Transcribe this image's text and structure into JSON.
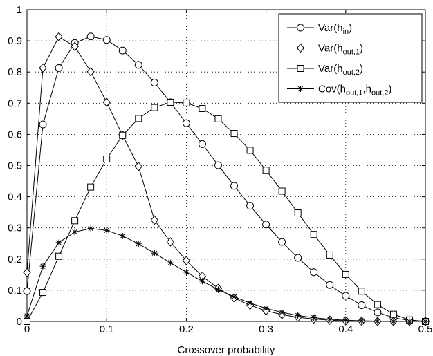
{
  "chart_data": {
    "type": "line",
    "title": "",
    "xlabel": "Crossover probability",
    "ylabel": "",
    "xlim": [
      0,
      0.5
    ],
    "ylim": [
      0,
      1
    ],
    "x_ticks": [
      0,
      0.1,
      0.2,
      0.3,
      0.4,
      0.5
    ],
    "x_tick_labels": [
      "0",
      "0.1",
      "0.2",
      "0.3",
      "0.4",
      "0.5"
    ],
    "y_ticks": [
      0,
      0.1,
      0.2,
      0.3,
      0.4,
      0.5,
      0.6,
      0.7,
      0.8,
      0.9,
      1
    ],
    "y_tick_labels": [
      "0",
      "0.1",
      "0.2",
      "0.3",
      "0.4",
      "0.5",
      "0.6",
      "0.7",
      "0.8",
      "0.9",
      "1"
    ],
    "grid": true,
    "legend_position": "top-right",
    "x": [
      0,
      0.02,
      0.04,
      0.06,
      0.08,
      0.1,
      0.12,
      0.14,
      0.16,
      0.18,
      0.2,
      0.22,
      0.24,
      0.26,
      0.28,
      0.3,
      0.32,
      0.34,
      0.36,
      0.38,
      0.4,
      0.42,
      0.44,
      0.46,
      0.48,
      0.5
    ],
    "series": [
      {
        "name_main": "Var(h",
        "name_sub": "in",
        "name_close": ")",
        "marker": "circle",
        "values": [
          0.097,
          0.632,
          0.813,
          0.893,
          0.914,
          0.903,
          0.869,
          0.823,
          0.766,
          0.703,
          0.636,
          0.569,
          0.501,
          0.435,
          0.371,
          0.311,
          0.255,
          0.204,
          0.158,
          0.117,
          0.082,
          0.052,
          0.029,
          0.012,
          0.003,
          0.0
        ]
      },
      {
        "name_main": "Var(h",
        "name_sub": "out,1",
        "name_close": ")",
        "marker": "diamond",
        "values": [
          0.157,
          0.813,
          0.913,
          0.882,
          0.801,
          0.703,
          0.597,
          0.497,
          0.325,
          0.255,
          0.195,
          0.145,
          0.106,
          0.075,
          0.052,
          0.034,
          0.022,
          0.013,
          0.008,
          0.004,
          0.002,
          0.001,
          0.0,
          0.0,
          0.0,
          0.0
        ]
      },
      {
        "name_main": "Var(h",
        "name_sub": "out,2",
        "name_close": ")",
        "marker": "square",
        "values": [
          0.0,
          0.093,
          0.209,
          0.323,
          0.431,
          0.521,
          0.597,
          0.651,
          0.686,
          0.703,
          0.701,
          0.683,
          0.65,
          0.603,
          0.549,
          0.485,
          0.418,
          0.348,
          0.279,
          0.213,
          0.151,
          0.097,
          0.054,
          0.023,
          0.005,
          0.0
        ]
      },
      {
        "name_main": "Cov(h",
        "name_sub": "out,1",
        "name_mid": ",h",
        "name_sub2": "out,2",
        "name_close": ")",
        "marker": "star",
        "values": [
          0.018,
          0.177,
          0.253,
          0.287,
          0.298,
          0.292,
          0.274,
          0.249,
          0.219,
          0.188,
          0.158,
          0.129,
          0.102,
          0.079,
          0.059,
          0.042,
          0.029,
          0.019,
          0.012,
          0.007,
          0.004,
          0.002,
          0.001,
          0.0,
          0.0,
          0.0
        ]
      }
    ]
  }
}
